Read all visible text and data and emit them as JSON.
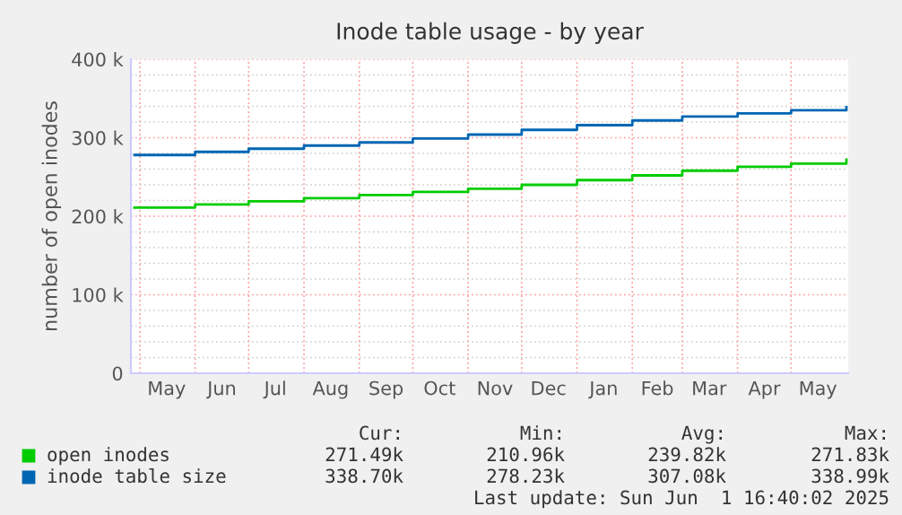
{
  "chart_data": {
    "type": "step",
    "title": "Inode table usage - by year",
    "ylabel": "number of open inodes",
    "x": [
      "2024-04-28",
      "2024-06-01",
      "2024-07-01",
      "2024-08-01",
      "2024-09-01",
      "2024-10-01",
      "2024-11-01",
      "2024-12-01",
      "2025-01-01",
      "2025-02-01",
      "2025-03-01",
      "2025-04-01",
      "2025-05-01",
      "2025-06-01"
    ],
    "series": [
      {
        "name": "open inodes",
        "color": "#00cc00",
        "values": [
          211000,
          215000,
          219000,
          223000,
          227000,
          231000,
          235000,
          240000,
          246000,
          252000,
          258000,
          263000,
          267000,
          272000
        ]
      },
      {
        "name": "inode table size",
        "color": "#0066b3",
        "values": [
          278000,
          282000,
          286000,
          290000,
          294000,
          299000,
          304000,
          310000,
          316000,
          322000,
          327000,
          331000,
          335000,
          339000
        ]
      }
    ],
    "xlim": [
      "2024-04-26",
      "2025-06-02"
    ],
    "xticks": [
      {
        "value": "2024-05-01",
        "label": null
      },
      {
        "value": "2024-05-16",
        "label": "May"
      },
      {
        "value": "2024-06-01",
        "label": null
      },
      {
        "value": "2024-06-16",
        "label": "Jun"
      },
      {
        "value": "2024-07-01",
        "label": null
      },
      {
        "value": "2024-07-16",
        "label": "Jul"
      },
      {
        "value": "2024-08-01",
        "label": null
      },
      {
        "value": "2024-08-16",
        "label": "Aug"
      },
      {
        "value": "2024-09-01",
        "label": null
      },
      {
        "value": "2024-09-16",
        "label": "Sep"
      },
      {
        "value": "2024-10-01",
        "label": null
      },
      {
        "value": "2024-10-16",
        "label": "Oct"
      },
      {
        "value": "2024-11-01",
        "label": null
      },
      {
        "value": "2024-11-16",
        "label": "Nov"
      },
      {
        "value": "2024-12-01",
        "label": null
      },
      {
        "value": "2024-12-16",
        "label": "Dec"
      },
      {
        "value": "2025-01-01",
        "label": null
      },
      {
        "value": "2025-01-16",
        "label": "Jan"
      },
      {
        "value": "2025-02-01",
        "label": null
      },
      {
        "value": "2025-02-15",
        "label": "Feb"
      },
      {
        "value": "2025-03-01",
        "label": null
      },
      {
        "value": "2025-03-16",
        "label": "Mar"
      },
      {
        "value": "2025-04-01",
        "label": null
      },
      {
        "value": "2025-04-16",
        "label": "Apr"
      },
      {
        "value": "2025-05-01",
        "label": null
      },
      {
        "value": "2025-05-16",
        "label": "May"
      }
    ],
    "ylim": [
      0,
      400000
    ],
    "yticks": [
      {
        "value": 0,
        "label": "0"
      },
      {
        "value": 20000,
        "label": null
      },
      {
        "value": 40000,
        "label": null
      },
      {
        "value": 60000,
        "label": null
      },
      {
        "value": 80000,
        "label": null
      },
      {
        "value": 100000,
        "label": "100 k"
      },
      {
        "value": 120000,
        "label": null
      },
      {
        "value": 140000,
        "label": null
      },
      {
        "value": 160000,
        "label": null
      },
      {
        "value": 180000,
        "label": null
      },
      {
        "value": 200000,
        "label": "200 k"
      },
      {
        "value": 220000,
        "label": null
      },
      {
        "value": 240000,
        "label": null
      },
      {
        "value": 260000,
        "label": null
      },
      {
        "value": 280000,
        "label": null
      },
      {
        "value": 300000,
        "label": "300 k"
      },
      {
        "value": 320000,
        "label": null
      },
      {
        "value": 340000,
        "label": null
      },
      {
        "value": 360000,
        "label": null
      },
      {
        "value": 380000,
        "label": null
      },
      {
        "value": 400000,
        "label": "400 k"
      }
    ],
    "grid": true,
    "legend": "bottom",
    "annotations": [
      "Cur:",
      "Min:",
      "Avg:",
      "Max:",
      "271.49k",
      "210.96k",
      "239.82k",
      "271.83k",
      "338.70k",
      "278.23k",
      "307.08k",
      "338.99k",
      "Last update: Sun Jun  1 16:40:02 2025"
    ]
  }
}
